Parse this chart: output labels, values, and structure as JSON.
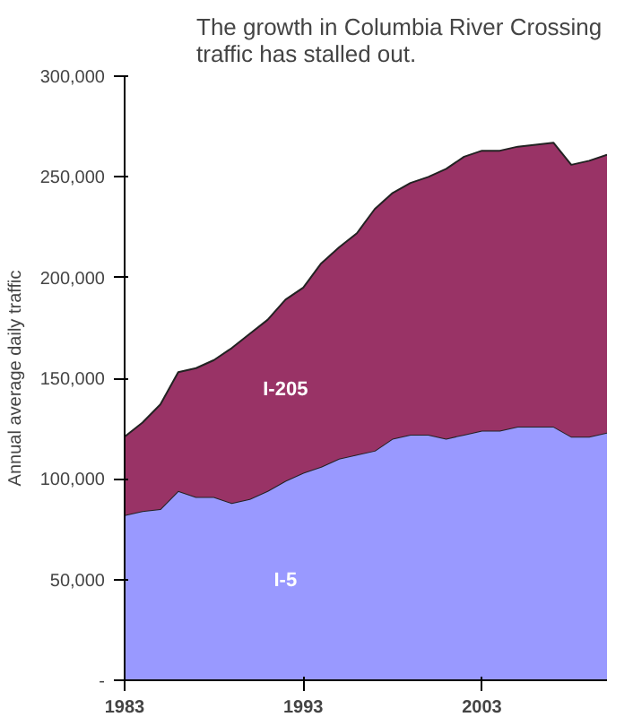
{
  "chart_data": {
    "type": "area",
    "stacked": true,
    "title": "The growth in Columbia River Crossing traffic has stalled out.",
    "ylabel": "Annual average daily traffic",
    "x": [
      1983,
      1984,
      1985,
      1986,
      1987,
      1988,
      1989,
      1990,
      1991,
      1992,
      1993,
      1994,
      1995,
      1996,
      1997,
      1998,
      1999,
      2000,
      2001,
      2002,
      2003,
      2004,
      2005,
      2006,
      2007,
      2008,
      2009,
      2010
    ],
    "series": [
      {
        "name": "I-5",
        "color": "#9999ff",
        "values": [
          82000,
          84000,
          85000,
          94000,
          91000,
          91000,
          88000,
          90000,
          94000,
          99000,
          103000,
          106000,
          110000,
          112000,
          114000,
          120000,
          122000,
          122000,
          120000,
          122000,
          124000,
          124000,
          126000,
          126000,
          126000,
          121000,
          121000,
          123000
        ]
      },
      {
        "name": "I-205",
        "color": "#993366",
        "values": [
          39000,
          44000,
          52000,
          59000,
          64000,
          68000,
          77000,
          82000,
          85000,
          90000,
          92000,
          101000,
          105000,
          110000,
          120000,
          122000,
          125000,
          128000,
          134000,
          138000,
          139000,
          139000,
          139000,
          140000,
          141000,
          135000,
          137000,
          138000
        ]
      }
    ],
    "xlim": [
      1983,
      2010
    ],
    "xticks": [
      1983,
      1993,
      2003
    ],
    "ylim": [
      0,
      300000
    ],
    "yticks": [
      {
        "value": 0,
        "label": "-"
      },
      {
        "value": 50000,
        "label": "50,000"
      },
      {
        "value": 100000,
        "label": "100,000"
      },
      {
        "value": 150000,
        "label": "150,000"
      },
      {
        "value": 200000,
        "label": "200,000"
      },
      {
        "value": 250000,
        "label": "250,000"
      },
      {
        "value": 300000,
        "label": "300,000"
      }
    ],
    "grid": false
  }
}
